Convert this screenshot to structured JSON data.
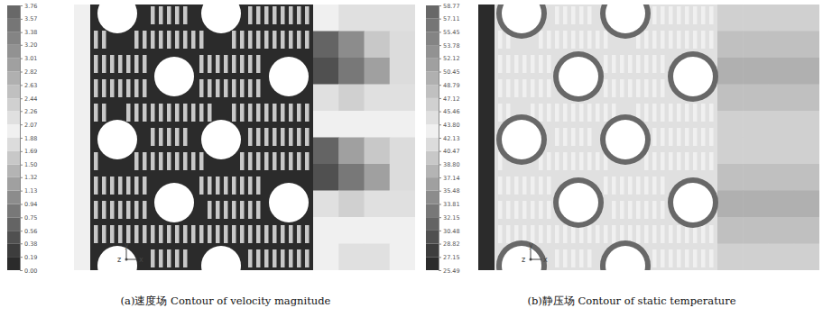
{
  "chart_data": [
    {
      "type": "heatmap",
      "title": "(a)速度场 Contour of velocity magnitude",
      "axes_triad": [
        "y",
        "z",
        "x"
      ],
      "color_range": [
        0,
        3.76
      ],
      "color_ticks": [
        {
          "value": 0,
          "label": "0.00"
        },
        {
          "value": 0.19,
          "label": "0.19"
        },
        {
          "value": 0.38,
          "label": "0.38"
        },
        {
          "value": 0.56,
          "label": "0.56"
        },
        {
          "value": 0.75,
          "label": "0.75"
        },
        {
          "value": 0.94,
          "label": "0.94"
        },
        {
          "value": 1.13,
          "label": "1.13"
        },
        {
          "value": 1.32,
          "label": "1.32"
        },
        {
          "value": 1.5,
          "label": "1.50"
        },
        {
          "value": 1.69,
          "label": "1.69"
        },
        {
          "value": 1.88,
          "label": "1.88"
        },
        {
          "value": 2.07,
          "label": "2.07"
        },
        {
          "value": 2.26,
          "label": "2.26"
        },
        {
          "value": 2.44,
          "label": "2.44"
        },
        {
          "value": 2.63,
          "label": "2.63"
        },
        {
          "value": 2.82,
          "label": "2.82"
        },
        {
          "value": 3.01,
          "label": "3.01"
        },
        {
          "value": 3.2,
          "label": "3.20"
        },
        {
          "value": 3.38,
          "label": "3.38"
        },
        {
          "value": 3.57,
          "label": "3.57"
        },
        {
          "value": 3.76,
          "label": "3.76"
        }
      ],
      "colors": [
        "#2b2b2b",
        "#3d3d3d",
        "#505050",
        "#646464",
        "#787878",
        "#8c8c8c",
        "#a0a0a0",
        "#b4b4b4",
        "#c8c8c8",
        "#dcdcdc",
        "#f0f0f0",
        "#e0e0e0",
        "#d0d0d0",
        "#c0c0c0",
        "#b0b0b0",
        "#a0a0a0",
        "#929292",
        "#848484",
        "#767676",
        "#686868"
      ],
      "inlet_value": 1.95,
      "fin_value": 0.1,
      "louver_value": 1.6,
      "wake_cells": [
        [
          2.0,
          2.1,
          2.2,
          2.2
        ],
        [
          0.6,
          1.1,
          1.5,
          1.8
        ],
        [
          0.4,
          0.9,
          1.3,
          1.7
        ],
        [
          2.2,
          2.3,
          2.2,
          2.1
        ],
        [
          1.9,
          2.0,
          2.0,
          2.0
        ],
        [
          0.7,
          1.2,
          1.6,
          1.8
        ],
        [
          0.4,
          0.9,
          1.3,
          1.7
        ],
        [
          2.2,
          2.3,
          2.2,
          2.1
        ],
        [
          1.9,
          2.0,
          2.0,
          2.0
        ],
        [
          2.0,
          2.1,
          2.1,
          2.0
        ]
      ]
    },
    {
      "type": "heatmap",
      "title": "(b)静压场 Contour of static temperature",
      "axes_triad": [
        "y",
        "z",
        "x"
      ],
      "color_range": [
        25.49,
        58.77
      ],
      "color_ticks": [
        {
          "value": 25.49,
          "label": "25.49"
        },
        {
          "value": 27.15,
          "label": "27.15"
        },
        {
          "value": 28.82,
          "label": "28.82"
        },
        {
          "value": 30.48,
          "label": "30.48"
        },
        {
          "value": 32.15,
          "label": "32.15"
        },
        {
          "value": 33.81,
          "label": "33.81"
        },
        {
          "value": 35.48,
          "label": "35.48"
        },
        {
          "value": 37.14,
          "label": "37.14"
        },
        {
          "value": 38.8,
          "label": "38.80"
        },
        {
          "value": 40.47,
          "label": "40.47"
        },
        {
          "value": 42.13,
          "label": "42.13"
        },
        {
          "value": 43.8,
          "label": "43.80"
        },
        {
          "value": 45.46,
          "label": "45.46"
        },
        {
          "value": 47.12,
          "label": "47.12"
        },
        {
          "value": 48.79,
          "label": "48.79"
        },
        {
          "value": 50.45,
          "label": "50.45"
        },
        {
          "value": 52.12,
          "label": "52.12"
        },
        {
          "value": 53.78,
          "label": "53.78"
        },
        {
          "value": 55.45,
          "label": "55.45"
        },
        {
          "value": 57.11,
          "label": "57.11"
        },
        {
          "value": 58.77,
          "label": "58.77"
        }
      ],
      "colors": [
        "#2b2b2b",
        "#3d3d3d",
        "#505050",
        "#646464",
        "#787878",
        "#8c8c8c",
        "#a0a0a0",
        "#b4b4b4",
        "#c8c8c8",
        "#dcdcdc",
        "#f0f0f0",
        "#e0e0e0",
        "#d0d0d0",
        "#c0c0c0",
        "#b0b0b0",
        "#a0a0a0",
        "#929292",
        "#848484",
        "#767676",
        "#686868"
      ],
      "inlet_value": 25.6,
      "fin_value": 45.0,
      "louver_value": 42.5,
      "tube_wall_value": 57.5,
      "wake_cells": [
        [
          46.0,
          46.2,
          46.5,
          46.5
        ],
        [
          47.5,
          47.8,
          47.9,
          47.9
        ],
        [
          48.9,
          49.2,
          49.0,
          48.9
        ],
        [
          47.5,
          48.0,
          48.2,
          48.1
        ],
        [
          46.0,
          46.3,
          46.5,
          46.5
        ],
        [
          46.0,
          46.3,
          46.5,
          46.5
        ],
        [
          47.5,
          47.8,
          47.9,
          47.9
        ],
        [
          48.9,
          49.2,
          49.0,
          48.9
        ],
        [
          47.5,
          48.0,
          48.2,
          48.1
        ],
        [
          46.0,
          46.2,
          46.5,
          46.5
        ]
      ]
    }
  ]
}
